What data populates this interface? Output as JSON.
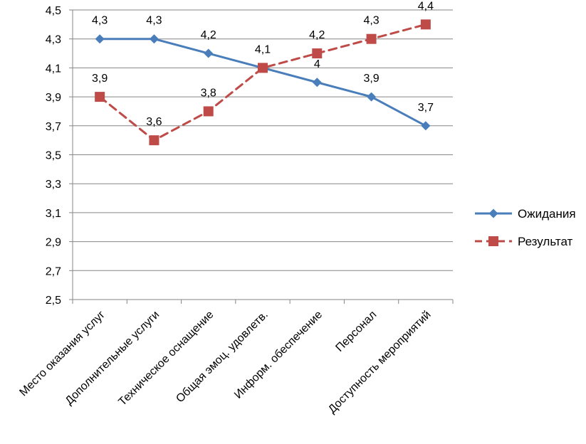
{
  "chart_data": {
    "type": "line",
    "categories": [
      "Место оказания услуг",
      "Дополнительные услуги",
      "Техническое оснащение",
      "Общая эмоц. удовлетв.",
      "Информ. обеспечение",
      "Персонал",
      "Доступность мероприятий"
    ],
    "series": [
      {
        "name": "Ожидания",
        "values": [
          4.3,
          4.3,
          4.2,
          4.1,
          4.0,
          3.9,
          3.7
        ],
        "labels": [
          "4,3",
          "4,3",
          "4,2",
          "",
          "4",
          "3,9",
          "3,7"
        ],
        "color": "#4a7ebb",
        "line_style": "solid",
        "marker": "diamond"
      },
      {
        "name": "Результат",
        "values": [
          3.9,
          3.6,
          3.8,
          4.1,
          4.2,
          4.3,
          4.4
        ],
        "labels": [
          "3,9",
          "3,6",
          "3,8",
          "4,1",
          "4,2",
          "4,3",
          "4,4"
        ],
        "color": "#be4b48",
        "line_style": "dashed",
        "marker": "square"
      }
    ],
    "ylim": [
      2.5,
      4.5
    ],
    "yticks": [
      "2,5",
      "2,7",
      "2,9",
      "3,1",
      "3,3",
      "3,5",
      "3,7",
      "3,9",
      "4,1",
      "4,3",
      "4,5"
    ],
    "ytick_values": [
      2.5,
      2.7,
      2.9,
      3.1,
      3.3,
      3.5,
      3.7,
      3.9,
      4.1,
      4.3,
      4.5
    ],
    "grid": true,
    "legend_position": "right"
  }
}
